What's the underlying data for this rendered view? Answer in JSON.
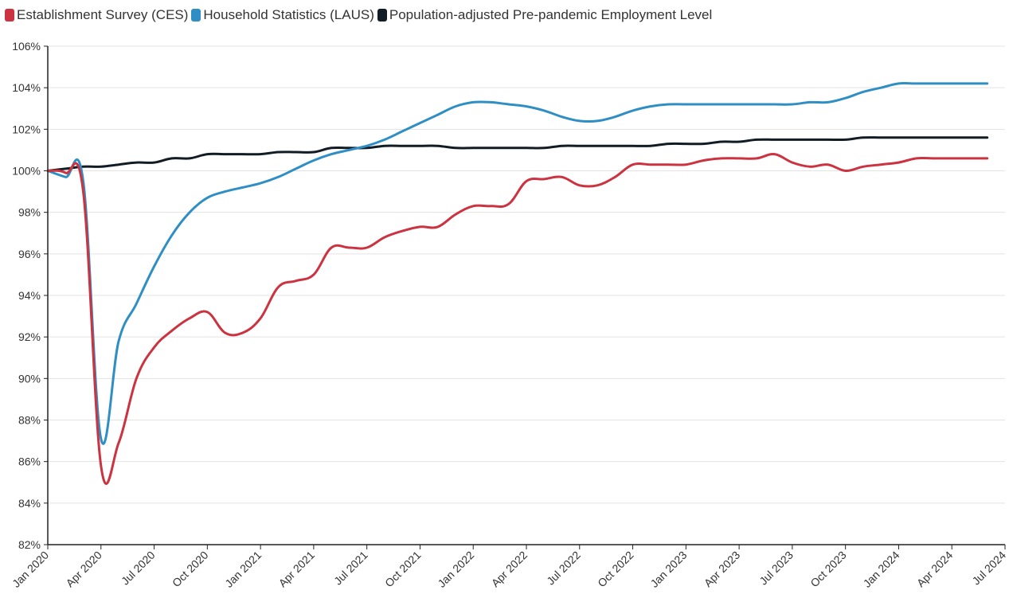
{
  "chart_data": {
    "type": "line",
    "title": "",
    "xlabel": "",
    "ylabel": "",
    "ylim": [
      82,
      106
    ],
    "xlim": [
      "2020-01",
      "2024-07"
    ],
    "y_ticks": [
      "82%",
      "84%",
      "86%",
      "88%",
      "90%",
      "92%",
      "94%",
      "96%",
      "98%",
      "100%",
      "102%",
      "104%",
      "106%"
    ],
    "x_ticks": [
      {
        "date": "2020-01",
        "label": "Jan 2020"
      },
      {
        "date": "2020-04",
        "label": "Apr 2020"
      },
      {
        "date": "2020-07",
        "label": "Jul 2020"
      },
      {
        "date": "2020-10",
        "label": "Oct 2020"
      },
      {
        "date": "2021-01",
        "label": "Jan 2021"
      },
      {
        "date": "2021-04",
        "label": "Apr 2021"
      },
      {
        "date": "2021-07",
        "label": "Jul 2021"
      },
      {
        "date": "2021-10",
        "label": "Oct 2021"
      },
      {
        "date": "2022-01",
        "label": "Jan 2022"
      },
      {
        "date": "2022-04",
        "label": "Apr 2022"
      },
      {
        "date": "2022-07",
        "label": "Jul 2022"
      },
      {
        "date": "2022-10",
        "label": "Oct 2022"
      },
      {
        "date": "2023-01",
        "label": "Jan 2023"
      },
      {
        "date": "2023-04",
        "label": "Apr 2023"
      },
      {
        "date": "2023-07",
        "label": "Jul 2023"
      },
      {
        "date": "2023-10",
        "label": "Oct 2023"
      },
      {
        "date": "2024-01",
        "label": "Jan 2024"
      },
      {
        "date": "2024-04",
        "label": "Apr 2024"
      },
      {
        "date": "2024-07",
        "label": "Jul 2024"
      }
    ],
    "grid": true,
    "legend_position": "top-left",
    "x": [
      "2020-01",
      "2020-02",
      "2020-03",
      "2020-04",
      "2020-05",
      "2020-06",
      "2020-07",
      "2020-08",
      "2020-09",
      "2020-10",
      "2020-11",
      "2020-12",
      "2021-01",
      "2021-02",
      "2021-03",
      "2021-04",
      "2021-05",
      "2021-06",
      "2021-07",
      "2021-08",
      "2021-09",
      "2021-10",
      "2021-11",
      "2021-12",
      "2022-01",
      "2022-02",
      "2022-03",
      "2022-04",
      "2022-05",
      "2022-06",
      "2022-07",
      "2022-08",
      "2022-09",
      "2022-10",
      "2022-11",
      "2022-12",
      "2023-01",
      "2023-02",
      "2023-03",
      "2023-04",
      "2023-05",
      "2023-06",
      "2023-07",
      "2023-08",
      "2023-09",
      "2023-10",
      "2023-11",
      "2023-12",
      "2024-01",
      "2024-02",
      "2024-03",
      "2024-04",
      "2024-05",
      "2024-06"
    ],
    "series": [
      {
        "name": "Establishment Survey (CES)",
        "color": "#cc3340",
        "values": [
          100.0,
          99.9,
          99.0,
          85.8,
          86.9,
          90.0,
          91.5,
          92.3,
          92.9,
          93.2,
          92.2,
          92.2,
          92.9,
          94.4,
          94.7,
          95.0,
          96.3,
          96.3,
          96.3,
          96.8,
          97.1,
          97.3,
          97.3,
          97.9,
          98.3,
          98.3,
          98.4,
          99.5,
          99.6,
          99.7,
          99.3,
          99.3,
          99.7,
          100.3,
          100.3,
          100.3,
          100.3,
          100.5,
          100.6,
          100.6,
          100.6,
          100.8,
          100.4,
          100.2,
          100.3,
          100.0,
          100.2,
          100.3,
          100.4,
          100.6,
          100.6,
          100.6,
          100.6,
          100.6
        ]
      },
      {
        "name": "Household Statistics (LAUS)",
        "color": "#2f8fc4",
        "values": [
          100.0,
          99.7,
          99.5,
          87.1,
          91.8,
          93.6,
          95.4,
          96.9,
          98.0,
          98.7,
          99.0,
          99.2,
          99.4,
          99.7,
          100.1,
          100.5,
          100.8,
          101.0,
          101.2,
          101.5,
          101.9,
          102.3,
          102.7,
          103.1,
          103.3,
          103.3,
          103.2,
          103.1,
          102.9,
          102.6,
          102.4,
          102.4,
          102.6,
          102.9,
          103.1,
          103.2,
          103.2,
          103.2,
          103.2,
          103.2,
          103.2,
          103.2,
          103.2,
          103.3,
          103.3,
          103.5,
          103.8,
          104.0,
          104.2,
          104.2,
          104.2,
          104.2,
          104.2,
          104.2
        ]
      },
      {
        "name": "Population-adjusted Pre-pandemic Employment Level",
        "color": "#111c24",
        "values": [
          100.0,
          100.1,
          100.2,
          100.2,
          100.3,
          100.4,
          100.4,
          100.6,
          100.6,
          100.8,
          100.8,
          100.8,
          100.8,
          100.9,
          100.9,
          100.9,
          101.1,
          101.1,
          101.1,
          101.2,
          101.2,
          101.2,
          101.2,
          101.1,
          101.1,
          101.1,
          101.1,
          101.1,
          101.1,
          101.2,
          101.2,
          101.2,
          101.2,
          101.2,
          101.2,
          101.3,
          101.3,
          101.3,
          101.4,
          101.4,
          101.5,
          101.5,
          101.5,
          101.5,
          101.5,
          101.5,
          101.6,
          101.6,
          101.6,
          101.6,
          101.6,
          101.6,
          101.6,
          101.6
        ]
      }
    ]
  }
}
